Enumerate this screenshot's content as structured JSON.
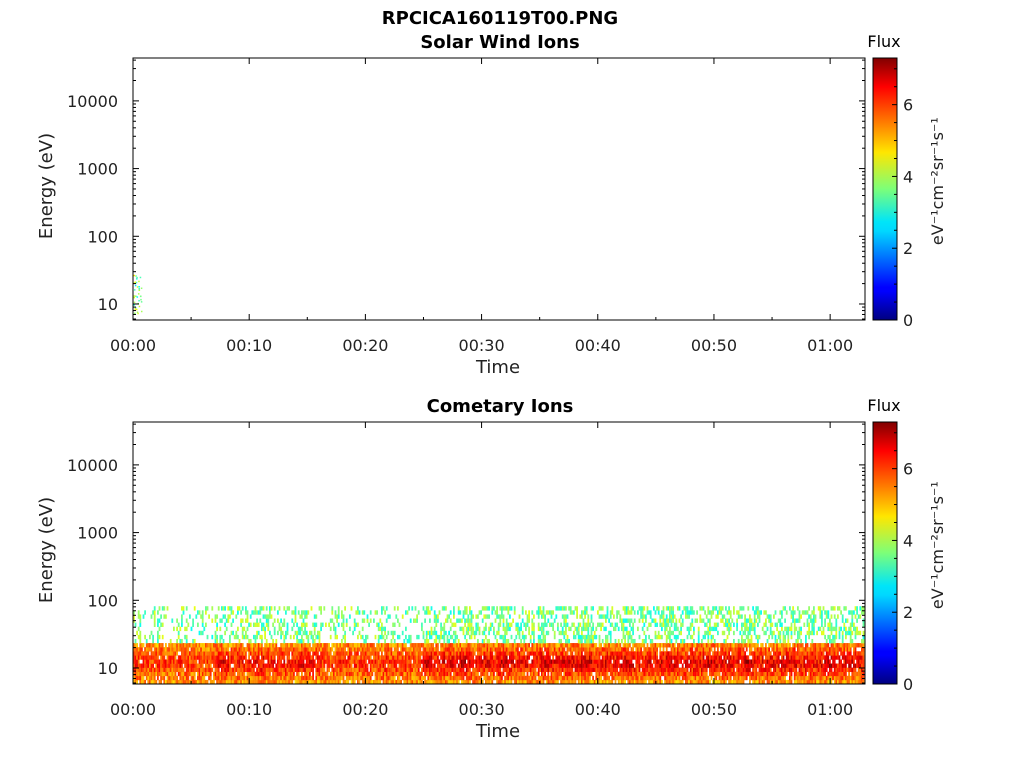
{
  "figure_title": "RPCICA160119T00.PNG",
  "chart_data": [
    {
      "type": "heatmap",
      "title": "Solar Wind Ions",
      "xlabel": "Time",
      "ylabel": "Energy (eV)",
      "x_ticks": [
        "00:00",
        "00:10",
        "00:20",
        "00:30",
        "00:40",
        "00:50",
        "01:00"
      ],
      "x_range_minutes": [
        0,
        63
      ],
      "y_scale": "log",
      "y_ticks": [
        10,
        100,
        1000,
        10000
      ],
      "y_tick_labels": [
        "10",
        "100",
        "1000",
        "10000"
      ],
      "ylim": [
        5.8,
        43000
      ],
      "colorbar": {
        "title": "Flux",
        "label": "eV⁻¹cm⁻²sr⁻¹s⁻¹",
        "ticks": [
          0,
          2,
          4,
          6
        ],
        "tick_labels": [
          "0",
          "2",
          "4",
          "6"
        ],
        "range": [
          0,
          7.3
        ]
      },
      "values": "no signal except sparse speckles near 10 eV"
    },
    {
      "type": "heatmap",
      "title": "Cometary Ions",
      "xlabel": "Time",
      "ylabel": "Energy (eV)",
      "x_ticks": [
        "00:00",
        "00:10",
        "00:20",
        "00:30",
        "00:40",
        "00:50",
        "01:00"
      ],
      "x_range_minutes": [
        0,
        63
      ],
      "y_scale": "log",
      "y_ticks": [
        10,
        100,
        1000,
        10000
      ],
      "y_tick_labels": [
        "10",
        "100",
        "1000",
        "10000"
      ],
      "ylim": [
        5.8,
        43000
      ],
      "colorbar": {
        "title": "Flux",
        "label": "eV⁻¹cm⁻²sr⁻¹s⁻¹",
        "ticks": [
          0,
          2,
          4,
          6
        ],
        "tick_labels": [
          "0",
          "2",
          "4",
          "6"
        ],
        "range": [
          0,
          7.3
        ]
      },
      "bands": [
        {
          "energy_min": 6,
          "energy_max": 22,
          "flux_typical": 5.3,
          "flux_peak": 6.9
        },
        {
          "energy_min": 22,
          "energy_max": 80,
          "flux_typical": 3.6,
          "flux_peak": 4.6
        }
      ],
      "activity": [
        {
          "t_start": 0,
          "t_end": 7,
          "level": 0.55
        },
        {
          "t_start": 7,
          "t_end": 16,
          "level": 0.8
        },
        {
          "t_start": 16,
          "t_end": 25,
          "level": 0.6
        },
        {
          "t_start": 25,
          "t_end": 63,
          "level": 0.95
        }
      ]
    }
  ]
}
